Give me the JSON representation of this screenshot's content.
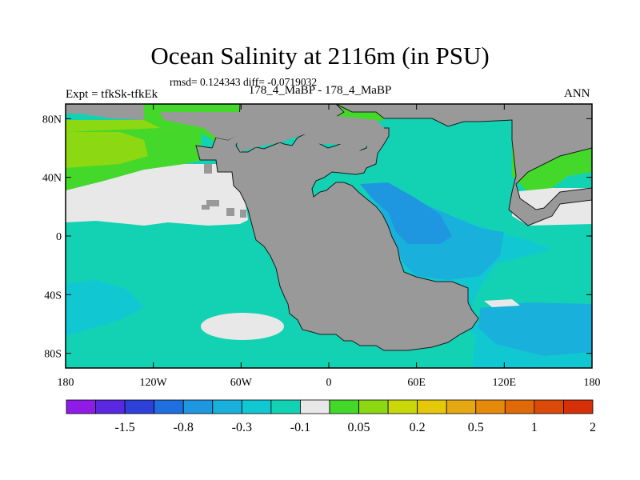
{
  "title": "Ocean Salinity at 2116m (in PSU)",
  "subtitle": "rmsd= 0.124343 diff= -0.0719032",
  "left_label": "Expt = tfkSk-tfkEk",
  "center_label": "178_4_MaBP - 178_4_MaBP",
  "right_label": "ANN",
  "map": {
    "lon_range": [
      -180,
      180
    ],
    "lat_range": [
      -90,
      90
    ],
    "lat_ticks": [
      {
        "value": 80,
        "label": "80N"
      },
      {
        "value": 40,
        "label": "40N"
      },
      {
        "value": 0,
        "label": "0"
      },
      {
        "value": -40,
        "label": "40S"
      },
      {
        "value": -80,
        "label": "80S"
      }
    ],
    "lon_ticks": [
      {
        "value": -180,
        "label": "180"
      },
      {
        "value": -120,
        "label": "120W"
      },
      {
        "value": -60,
        "label": "60W"
      },
      {
        "value": 0,
        "label": "0"
      },
      {
        "value": 60,
        "label": "60E"
      },
      {
        "value": 120,
        "label": "120E"
      },
      {
        "value": 180,
        "label": "180"
      }
    ]
  },
  "colorbar": {
    "colors": [
      "#8f1ce6",
      "#5a28e0",
      "#2e40da",
      "#1f6fe0",
      "#1f96e0",
      "#19b0dc",
      "#11c8d2",
      "#13d2b4",
      "#e8e8e8",
      "#44d82a",
      "#8cd812",
      "#c8d808",
      "#e6c80a",
      "#e6a812",
      "#e68a0c",
      "#e06a0a",
      "#dc4a0a",
      "#d63008"
    ],
    "labels": [
      "-1.5",
      "-0.8",
      "-0.3",
      "-0.1",
      "0.05",
      "0.2",
      "0.5",
      "1",
      "2"
    ]
  },
  "palette": {
    "land": "#999999",
    "neutral": "#e8e8e8",
    "teal": "#13d2b4",
    "cyan": "#11c8d2",
    "light_blue": "#19b0dc",
    "blue": "#1f96e0",
    "green": "#44d82a",
    "yellow_green": "#8cd812"
  }
}
